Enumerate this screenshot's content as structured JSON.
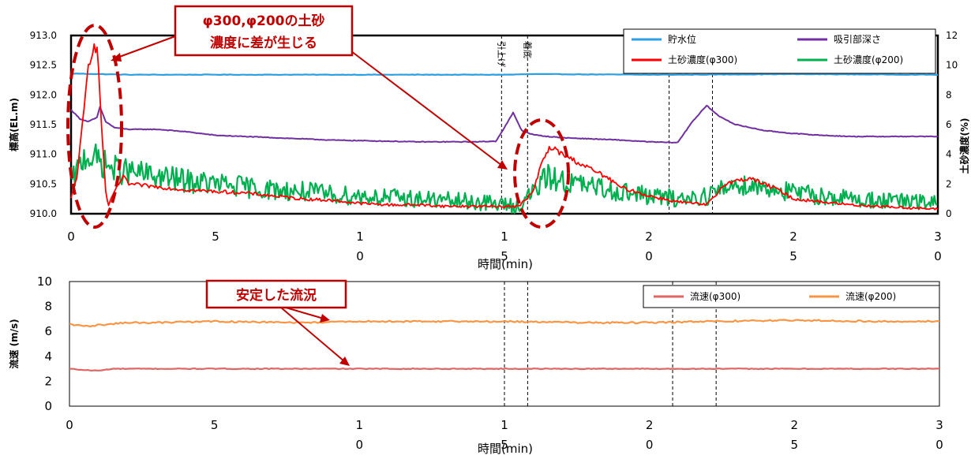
{
  "chart_data": [
    {
      "type": "line",
      "title": "",
      "xlabel": "時間(min)",
      "ylabel": "標高(EL.m)",
      "y2label": "土砂濃度(%)",
      "xlim": [
        0,
        30
      ],
      "ylim": [
        910.0,
        913.0
      ],
      "y2lim": [
        0,
        12
      ],
      "xticks": [
        {
          "v": 0,
          "l1": "0",
          "l2": ""
        },
        {
          "v": 5,
          "l1": "5",
          "l2": ""
        },
        {
          "v": 10,
          "l1": "1",
          "l2": "0"
        },
        {
          "v": 15,
          "l1": "1",
          "l2": "5"
        },
        {
          "v": 20,
          "l1": "2",
          "l2": "0"
        },
        {
          "v": 25,
          "l1": "2",
          "l2": "5"
        },
        {
          "v": 30,
          "l1": "3",
          "l2": "0"
        }
      ],
      "yticks": [
        "910.0",
        "910.5",
        "911.0",
        "911.5",
        "912.0",
        "912.5",
        "913.0"
      ],
      "y2ticks": [
        "0",
        "2",
        "4",
        "6",
        "8",
        "10",
        "12"
      ],
      "grid": false,
      "legend_position": "top-right",
      "series": [
        {
          "name": "貯水位",
          "axis": "left",
          "color": "#2e9fe0",
          "x": [
            0,
            1,
            2,
            5,
            10,
            15,
            16,
            20,
            21,
            25,
            30
          ],
          "y": [
            912.36,
            912.35,
            912.34,
            912.34,
            912.34,
            912.34,
            912.35,
            912.34,
            912.34,
            912.35,
            912.34
          ]
        },
        {
          "name": "吸引部深さ",
          "axis": "left",
          "color": "#7030a0",
          "x": [
            0,
            0.3,
            0.6,
            0.9,
            1.0,
            1.2,
            1.5,
            2,
            3,
            4,
            5,
            6,
            7,
            8,
            9,
            10,
            11,
            12,
            13,
            14,
            14.7,
            15.0,
            15.3,
            15.6,
            16.0,
            16.5,
            17,
            18,
            19,
            20,
            20.7,
            21.0,
            21.5,
            22.0,
            22.4,
            23.0,
            24.0,
            25,
            26,
            27,
            28,
            30
          ],
          "y": [
            911.75,
            911.6,
            911.55,
            911.62,
            911.8,
            911.55,
            911.45,
            911.42,
            911.42,
            911.38,
            911.32,
            911.3,
            911.28,
            911.26,
            911.24,
            911.23,
            911.22,
            911.21,
            911.21,
            911.21,
            911.22,
            911.45,
            911.7,
            911.4,
            911.33,
            911.3,
            911.28,
            911.26,
            911.24,
            911.21,
            911.2,
            911.2,
            911.55,
            911.82,
            911.65,
            911.5,
            911.4,
            911.35,
            911.32,
            911.3,
            911.3,
            911.3
          ]
        },
        {
          "name": "土砂濃度(φ300)",
          "axis": "right",
          "color": "#ff0000",
          "x": [
            0,
            0.2,
            0.4,
            0.6,
            0.8,
            0.9,
            1.0,
            1.1,
            1.2,
            1.3,
            1.5,
            1.8,
            2,
            3,
            4,
            5,
            6,
            7,
            8,
            9,
            10,
            11,
            12,
            13,
            14,
            15,
            15.5,
            16.0,
            16.3,
            16.6,
            17.0,
            17.5,
            18,
            18.5,
            19,
            20,
            21,
            22.0,
            22.3,
            22.6,
            23.0,
            23.5,
            24.0,
            24.5,
            25,
            26,
            27,
            28,
            29,
            30
          ],
          "y": [
            1.0,
            2.5,
            6.0,
            10.0,
            11.5,
            11.0,
            8.0,
            4.5,
            1.5,
            0.5,
            1.5,
            2.5,
            2.0,
            1.8,
            1.6,
            1.5,
            1.4,
            1.2,
            1.0,
            0.9,
            0.7,
            0.6,
            0.6,
            0.5,
            0.5,
            0.5,
            0.5,
            1.5,
            3.5,
            4.5,
            4.0,
            3.5,
            3.0,
            2.5,
            1.8,
            1.2,
            0.8,
            0.6,
            1.2,
            2.0,
            2.2,
            2.4,
            2.0,
            1.6,
            1.0,
            0.8,
            0.6,
            0.5,
            0.4,
            0.3
          ]
        },
        {
          "name": "土砂濃度(φ200)",
          "axis": "right",
          "color": "#00b050",
          "x": [
            0,
            0.5,
            1.0,
            1.5,
            2,
            3,
            4,
            5,
            6,
            7,
            8,
            9,
            10,
            11,
            12,
            13,
            14,
            15,
            15.5,
            16.0,
            16.5,
            17,
            18,
            19,
            20,
            21,
            22,
            22.5,
            23,
            24,
            25,
            26,
            27,
            28,
            29,
            30
          ],
          "y": [
            2.0,
            4.0,
            3.5,
            3.0,
            2.8,
            2.5,
            2.2,
            2.0,
            1.8,
            1.6,
            1.5,
            1.3,
            1.2,
            1.1,
            1.0,
            0.9,
            0.8,
            0.6,
            0.5,
            1.5,
            2.5,
            2.2,
            1.8,
            1.5,
            1.2,
            1.0,
            1.2,
            1.6,
            2.0,
            1.8,
            1.4,
            1.2,
            1.0,
            0.9,
            0.8,
            0.7
          ]
        }
      ],
      "vlines": [
        {
          "x": 14.9,
          "label": "引上げ"
        },
        {
          "x": 15.8,
          "label": "着底"
        },
        {
          "x": 20.7,
          "label": "引上げ"
        },
        {
          "x": 22.2,
          "label": "着底"
        }
      ],
      "annotations": [
        {
          "line1": "φ300,φ200の土砂",
          "line2": "濃度に差が生じる"
        }
      ]
    },
    {
      "type": "line",
      "title": "",
      "xlabel": "時間(min)",
      "ylabel": "流速 (m/s)",
      "xlim": [
        0,
        30
      ],
      "ylim": [
        0,
        10
      ],
      "xticks": [
        {
          "v": 0,
          "l1": "0",
          "l2": ""
        },
        {
          "v": 5,
          "l1": "5",
          "l2": ""
        },
        {
          "v": 10,
          "l1": "1",
          "l2": "0"
        },
        {
          "v": 15,
          "l1": "1",
          "l2": "5"
        },
        {
          "v": 20,
          "l1": "2",
          "l2": "0"
        },
        {
          "v": 25,
          "l1": "2",
          "l2": "5"
        },
        {
          "v": 30,
          "l1": "3",
          "l2": "0"
        }
      ],
      "yticks": [
        "0",
        "2",
        "4",
        "6",
        "8",
        "10"
      ],
      "grid": false,
      "legend_position": "top-right",
      "series": [
        {
          "name": "流速(φ300)",
          "axis": "left",
          "color": "#e06666",
          "x": [
            0,
            0.5,
            1,
            1.5,
            2,
            5,
            10,
            15,
            20,
            25,
            30
          ],
          "y": [
            3.0,
            2.9,
            2.85,
            3.0,
            3.0,
            3.0,
            3.0,
            3.0,
            3.0,
            3.0,
            3.0
          ]
        },
        {
          "name": "流速(φ200)",
          "axis": "left",
          "color": "#f79646",
          "x": [
            0,
            0.5,
            1,
            1.5,
            2,
            3,
            5,
            8,
            10,
            15,
            18,
            20,
            22,
            25,
            28,
            30
          ],
          "y": [
            6.6,
            6.4,
            6.5,
            6.6,
            6.7,
            6.7,
            6.8,
            6.7,
            6.8,
            6.8,
            6.7,
            6.7,
            6.8,
            6.9,
            6.8,
            6.8
          ]
        }
      ],
      "vlines": [
        {
          "x": 15.0,
          "label": ""
        },
        {
          "x": 15.8,
          "label": ""
        },
        {
          "x": 20.8,
          "label": ""
        },
        {
          "x": 22.3,
          "label": ""
        }
      ],
      "annotations": [
        {
          "line1": "安定した流況",
          "line2": ""
        }
      ]
    }
  ]
}
